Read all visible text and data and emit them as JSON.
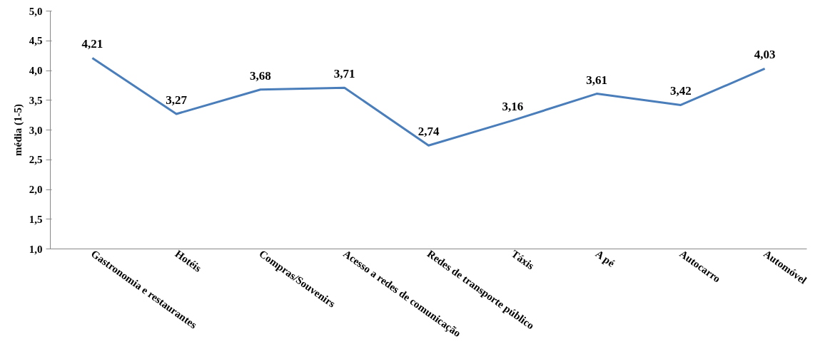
{
  "chart_data": {
    "type": "line",
    "ylabel": "média (1-5)",
    "categories": [
      "Gastronomia e restaurantes",
      "Hotéis",
      "Compras/Souvenirs",
      "Acesso a redes de comunicação",
      "Redes de transporte público",
      "Táxis",
      "A pé",
      "Autocarro",
      "Automóvel"
    ],
    "series": [
      {
        "color": "#4a7ebb",
        "values": [
          4.21,
          3.27,
          3.68,
          3.71,
          2.74,
          3.16,
          3.61,
          3.42,
          4.03
        ],
        "value_labels": [
          "4,21",
          "3,27",
          "3,68",
          "3,71",
          "2,74",
          "3,16",
          "3,61",
          "3,42",
          "4,03"
        ]
      }
    ],
    "ylim": [
      1,
      5
    ],
    "yticks": [
      {
        "value": 1,
        "label": "1,0"
      },
      {
        "value": 1.5,
        "label": "1,5"
      },
      {
        "value": 2,
        "label": "2,0"
      },
      {
        "value": 2.5,
        "label": "2,5"
      },
      {
        "value": 3,
        "label": "3,0"
      },
      {
        "value": 3.5,
        "label": "3,5"
      },
      {
        "value": 4,
        "label": "4,0"
      },
      {
        "value": 4.5,
        "label": "4,5"
      },
      {
        "value": 5,
        "label": "5,0"
      }
    ],
    "line_style": "solid"
  }
}
